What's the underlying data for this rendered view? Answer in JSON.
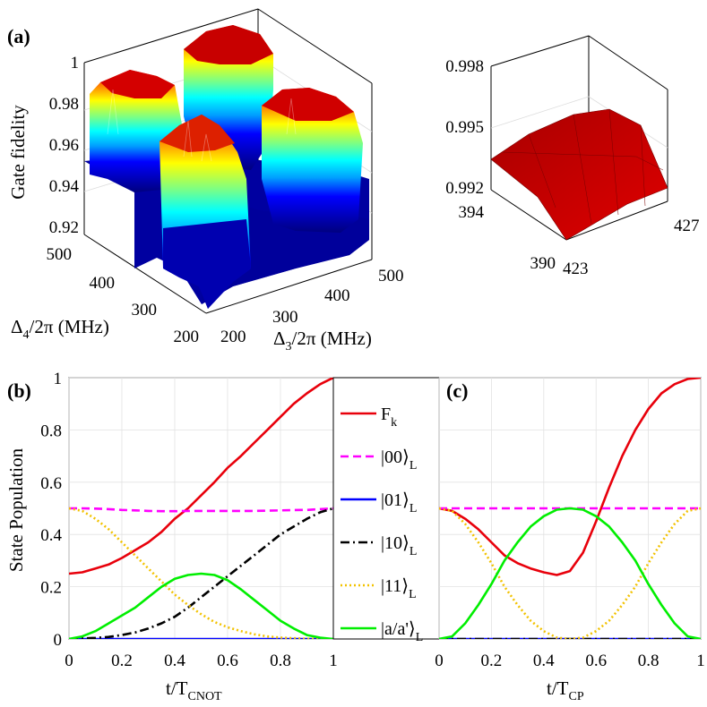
{
  "chart_data": [
    {
      "panel": "(a)",
      "type": "surface3d",
      "zlabel": "Gate fidelity",
      "xlabel_main": "Δ",
      "xlabel_sub": "4",
      "xlabel_rest": "/2π (MHz)",
      "ylabel_main": "Δ",
      "ylabel_sub": "3",
      "ylabel_rest": "/2π (MHz)",
      "zticks": [
        "1",
        "0.98",
        "0.96",
        "0.94",
        "0.92"
      ],
      "xticks": [
        "500",
        "400",
        "300",
        "200"
      ],
      "yticks": [
        "200",
        "300",
        "400",
        "500"
      ],
      "zlim": [
        0.92,
        1
      ],
      "xlim": [
        200,
        500
      ],
      "ylim": [
        200,
        500
      ],
      "peaks": [
        {
          "delta3": 300,
          "delta4": 400,
          "fidelity": 0.985
        },
        {
          "delta3": 400,
          "delta4": 400,
          "fidelity": 0.999
        },
        {
          "delta3": 300,
          "delta4": 300,
          "fidelity": 0.978
        },
        {
          "delta3": 400,
          "delta4": 300,
          "fidelity": 0.984
        }
      ],
      "colormap": "jet",
      "inset": {
        "zticks": [
          "0.998",
          "0.995",
          "0.992"
        ],
        "xticks": [
          "394",
          "390"
        ],
        "yticks": [
          "423",
          "427"
        ],
        "zlim": [
          0.992,
          0.998
        ],
        "xlim": [
          390,
          394
        ],
        "ylim": [
          423,
          427
        ]
      }
    },
    {
      "panel": "(b)",
      "type": "line",
      "xlabel": "t/T",
      "xlabel_sub": "CNOT",
      "ylabel": "State Population",
      "xlim": [
        0,
        1
      ],
      "ylim": [
        0,
        1
      ],
      "xticks": [
        "0",
        "0.2",
        "0.4",
        "0.6",
        "0.8",
        "1"
      ],
      "yticks": [
        "0",
        "0.2",
        "0.4",
        "0.6",
        "0.8",
        "1"
      ],
      "x": [
        0,
        0.05,
        0.1,
        0.15,
        0.2,
        0.25,
        0.3,
        0.35,
        0.4,
        0.45,
        0.5,
        0.55,
        0.6,
        0.65,
        0.7,
        0.75,
        0.8,
        0.85,
        0.9,
        0.95,
        1
      ],
      "series": [
        {
          "name": "F_k",
          "color": "#e8000b",
          "dash": "solid",
          "values": [
            0.25,
            0.255,
            0.27,
            0.285,
            0.31,
            0.34,
            0.37,
            0.41,
            0.46,
            0.5,
            0.55,
            0.6,
            0.655,
            0.7,
            0.75,
            0.8,
            0.85,
            0.9,
            0.94,
            0.975,
            1.0
          ]
        },
        {
          "name": "|00>_L",
          "color": "#ff00ff",
          "dash": "dashed",
          "values": [
            0.5,
            0.5,
            0.499,
            0.497,
            0.494,
            0.492,
            0.49,
            0.489,
            0.489,
            0.49,
            0.49,
            0.49,
            0.49,
            0.49,
            0.49,
            0.491,
            0.492,
            0.493,
            0.494,
            0.497,
            0.5
          ]
        },
        {
          "name": "|01>_L",
          "color": "#0000ff",
          "dash": "solid",
          "values": [
            0,
            0,
            0,
            0,
            0,
            0,
            0,
            0,
            0,
            0,
            0,
            0,
            0,
            0,
            0,
            0,
            0,
            0,
            0,
            0,
            0
          ]
        },
        {
          "name": "|10>_L",
          "color": "#000000",
          "dash": "dashdot",
          "values": [
            0,
            0.002,
            0.004,
            0.008,
            0.015,
            0.025,
            0.04,
            0.06,
            0.085,
            0.12,
            0.16,
            0.2,
            0.24,
            0.28,
            0.32,
            0.36,
            0.4,
            0.43,
            0.46,
            0.485,
            0.5
          ]
        },
        {
          "name": "|11>_L",
          "color": "#f2c200",
          "dash": "dotted",
          "values": [
            0.5,
            0.49,
            0.46,
            0.42,
            0.37,
            0.32,
            0.27,
            0.22,
            0.17,
            0.13,
            0.095,
            0.065,
            0.045,
            0.03,
            0.018,
            0.01,
            0.005,
            0.003,
            0.001,
            0.0,
            0.0
          ]
        },
        {
          "name": "|a/a'>_L",
          "color": "#00ee00",
          "dash": "solid",
          "values": [
            0,
            0.01,
            0.03,
            0.06,
            0.09,
            0.12,
            0.16,
            0.2,
            0.23,
            0.245,
            0.25,
            0.245,
            0.225,
            0.19,
            0.15,
            0.11,
            0.07,
            0.04,
            0.015,
            0.005,
            0
          ]
        }
      ]
    },
    {
      "panel": "(c)",
      "type": "line",
      "xlabel": "t/T",
      "xlabel_sub": "CP",
      "xlim": [
        0,
        1
      ],
      "ylim": [
        0,
        1
      ],
      "xticks": [
        "0",
        "0.2",
        "0.4",
        "0.6",
        "0.8",
        "1"
      ],
      "x": [
        0,
        0.05,
        0.1,
        0.15,
        0.2,
        0.25,
        0.3,
        0.35,
        0.4,
        0.45,
        0.5,
        0.55,
        0.6,
        0.65,
        0.7,
        0.75,
        0.8,
        0.85,
        0.9,
        0.95,
        1
      ],
      "series": [
        {
          "name": "F_k",
          "color": "#e8000b",
          "dash": "solid",
          "values": [
            0.5,
            0.49,
            0.46,
            0.42,
            0.37,
            0.32,
            0.29,
            0.27,
            0.255,
            0.245,
            0.26,
            0.33,
            0.45,
            0.58,
            0.7,
            0.8,
            0.88,
            0.94,
            0.975,
            0.995,
            1.0
          ]
        },
        {
          "name": "|00>_L",
          "color": "#ff00ff",
          "dash": "dashed",
          "values": [
            0.5,
            0.5,
            0.5,
            0.5,
            0.5,
            0.5,
            0.5,
            0.5,
            0.5,
            0.5,
            0.5,
            0.5,
            0.5,
            0.5,
            0.5,
            0.5,
            0.5,
            0.5,
            0.5,
            0.5,
            0.5
          ]
        },
        {
          "name": "|01>_L",
          "color": "#0000ff",
          "dash": "solid",
          "values": [
            0,
            0,
            0,
            0,
            0,
            0,
            0,
            0,
            0,
            0,
            0,
            0,
            0,
            0,
            0,
            0,
            0,
            0,
            0,
            0,
            0
          ]
        },
        {
          "name": "|10>_L",
          "color": "#000000",
          "dash": "dashdot",
          "values": [
            0,
            0,
            0,
            0,
            0,
            0,
            0,
            0,
            0,
            0,
            0,
            0,
            0,
            0,
            0,
            0,
            0,
            0,
            0,
            0,
            0
          ]
        },
        {
          "name": "|11>_L",
          "color": "#f2c200",
          "dash": "dotted",
          "values": [
            0.5,
            0.49,
            0.44,
            0.37,
            0.29,
            0.2,
            0.13,
            0.07,
            0.03,
            0.005,
            0.0,
            0.005,
            0.03,
            0.07,
            0.13,
            0.2,
            0.29,
            0.37,
            0.44,
            0.49,
            0.5
          ]
        },
        {
          "name": "|a/a'>_L",
          "color": "#00ee00",
          "dash": "solid",
          "values": [
            0,
            0.01,
            0.06,
            0.13,
            0.21,
            0.3,
            0.37,
            0.43,
            0.47,
            0.495,
            0.5,
            0.495,
            0.47,
            0.43,
            0.37,
            0.3,
            0.21,
            0.13,
            0.06,
            0.01,
            0
          ]
        }
      ]
    }
  ],
  "legend": {
    "items": [
      {
        "main": "F",
        "sub": "k"
      },
      {
        "main": "|00⟩",
        "sub": "L"
      },
      {
        "main": "|01⟩",
        "sub": "L"
      },
      {
        "main": "|10⟩",
        "sub": "L"
      },
      {
        "main": "|11⟩",
        "sub": "L"
      },
      {
        "main": "|a/a'⟩",
        "sub": "L"
      }
    ]
  }
}
